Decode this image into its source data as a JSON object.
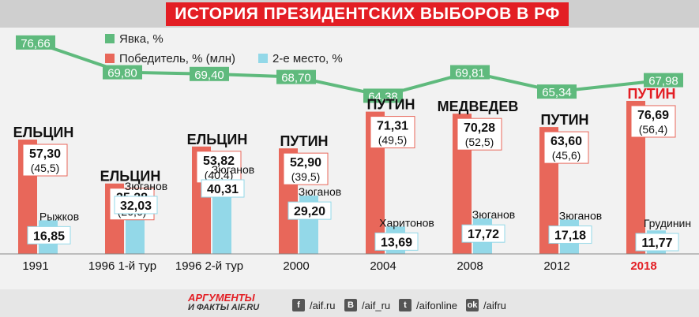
{
  "header": {
    "title": "ИСТОРИЯ ПРЕЗИДЕНТСКИХ ВЫБОРОВ В РФ"
  },
  "legend": {
    "turnout": "Явка, %",
    "winner": "Победитель, % (млн)",
    "runner_up": "2-е место, %"
  },
  "colors": {
    "winner": "#e8675a",
    "runner_up": "#93d8e8",
    "turnout": "#5fba7d",
    "title_bg": "#e31e24",
    "highlight": "#e31e24"
  },
  "chart_data": {
    "type": "bar",
    "categories": [
      "1991",
      "1996 1-й тур",
      "1996 2-й тур",
      "2000",
      "2004",
      "2008",
      "2012",
      "2018"
    ],
    "series": [
      {
        "name": "Победитель, % (млн)",
        "values": [
          57.3,
          35.28,
          53.82,
          52.9,
          71.31,
          70.28,
          63.6,
          76.69
        ],
        "votes_mln": [
          "(45,5)",
          "(26,6)",
          "(40,4)",
          "(39,5)",
          "(49,5)",
          "(52,5)",
          "(45,6)",
          "(56,4)"
        ],
        "labels": [
          "57,30",
          "35,28",
          "53,82",
          "52,90",
          "71,31",
          "70,28",
          "63,60",
          "76,69"
        ]
      },
      {
        "name": "2-е место, %",
        "values": [
          16.85,
          32.03,
          40.31,
          29.2,
          13.69,
          17.72,
          17.18,
          11.77
        ],
        "labels": [
          "16,85",
          "32,03",
          "40,31",
          "29,20",
          "13,69",
          "17,72",
          "17,18",
          "11,77"
        ]
      },
      {
        "name": "Явка, %",
        "values": [
          76.66,
          69.8,
          69.4,
          68.7,
          64.38,
          69.81,
          65.34,
          67.98
        ],
        "labels": [
          "76,66",
          "69,80",
          "69,40",
          "68,70",
          "64,38",
          "69,81",
          "65,34",
          "67,98"
        ]
      }
    ],
    "winners": [
      "ЕЛЬЦИН",
      "ЕЛЬЦИН",
      "ЕЛЬЦИН",
      "ПУТИН",
      "ПУТИН",
      "МЕДВЕДЕВ",
      "ПУТИН",
      "ПУТИН"
    ],
    "runners_up": [
      "Рыжков",
      "Зюганов",
      "Зюганов",
      "Зюганов",
      "Харитонов",
      "Зюганов",
      "Зюганов",
      "Грудинин"
    ],
    "highlight_category": "2018",
    "ylim": [
      0,
      80
    ],
    "legend_position": "top-left"
  },
  "footer": {
    "brand_line1": "АРГУМЕНТЫ",
    "brand_line2": "И ФАКТЫ",
    "brand_site": "AIF.RU",
    "social": [
      {
        "icon": "f",
        "handle": "/aif.ru"
      },
      {
        "icon": "В",
        "handle": "/aif_ru"
      },
      {
        "icon": "t",
        "handle": "/aifonline"
      },
      {
        "icon": "ok",
        "handle": "/aifru"
      }
    ]
  }
}
